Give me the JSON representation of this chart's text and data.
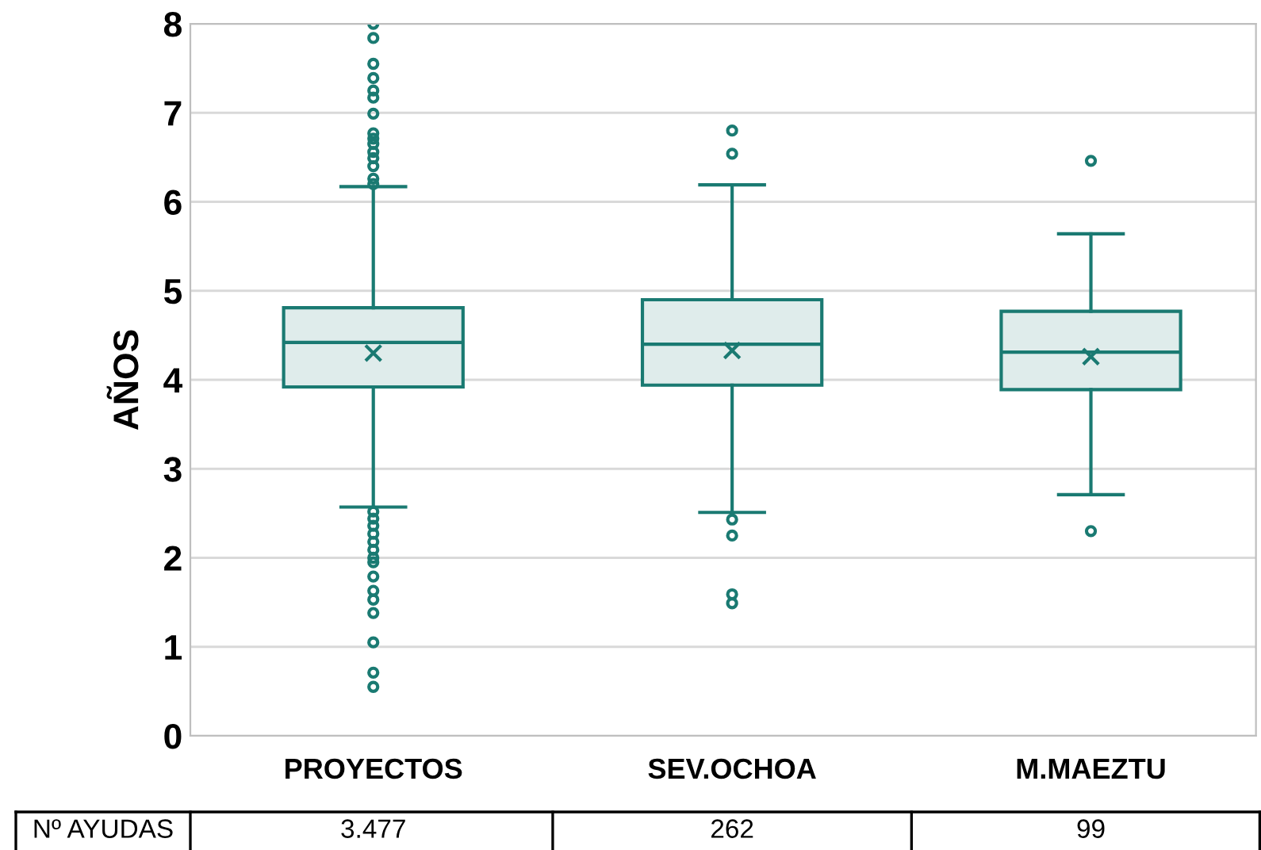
{
  "chart_data": {
    "type": "box",
    "ylabel": "AÑOS",
    "categories": [
      "PROYECTOS",
      "SEV.OCHOA",
      "M.MAEZTU"
    ],
    "series": [
      {
        "color": "#1a7a72",
        "boxes": [
          {
            "low": 2.57,
            "q1": 3.92,
            "median": 4.42,
            "q3": 4.81,
            "high": 6.17,
            "mean": 4.3,
            "outliers": [
              8.0,
              7.84,
              7.55,
              7.39,
              7.25,
              7.17,
              6.99,
              6.77,
              6.71,
              6.65,
              6.56,
              6.49,
              6.4,
              6.26,
              6.2,
              2.52,
              2.44,
              2.36,
              2.27,
              2.18,
              2.09,
              2.0,
              1.95,
              1.79,
              1.63,
              1.53,
              1.38,
              1.05,
              0.71,
              0.55
            ]
          },
          {
            "low": 2.51,
            "q1": 3.94,
            "median": 4.4,
            "q3": 4.9,
            "high": 6.19,
            "mean": 4.33,
            "outliers": [
              6.8,
              6.54,
              2.43,
              2.25,
              1.59,
              1.49
            ]
          },
          {
            "low": 2.71,
            "q1": 3.89,
            "median": 4.31,
            "q3": 4.77,
            "high": 5.64,
            "mean": 4.26,
            "outliers": [
              6.46,
              2.3
            ]
          }
        ]
      }
    ],
    "ylim": [
      0,
      8
    ],
    "yticks": [
      0,
      1,
      2,
      3,
      4,
      5,
      6,
      7,
      8
    ],
    "grid": "y",
    "annotations": [
      "Nº AYUDAS",
      "3.477",
      "262",
      "99"
    ]
  }
}
